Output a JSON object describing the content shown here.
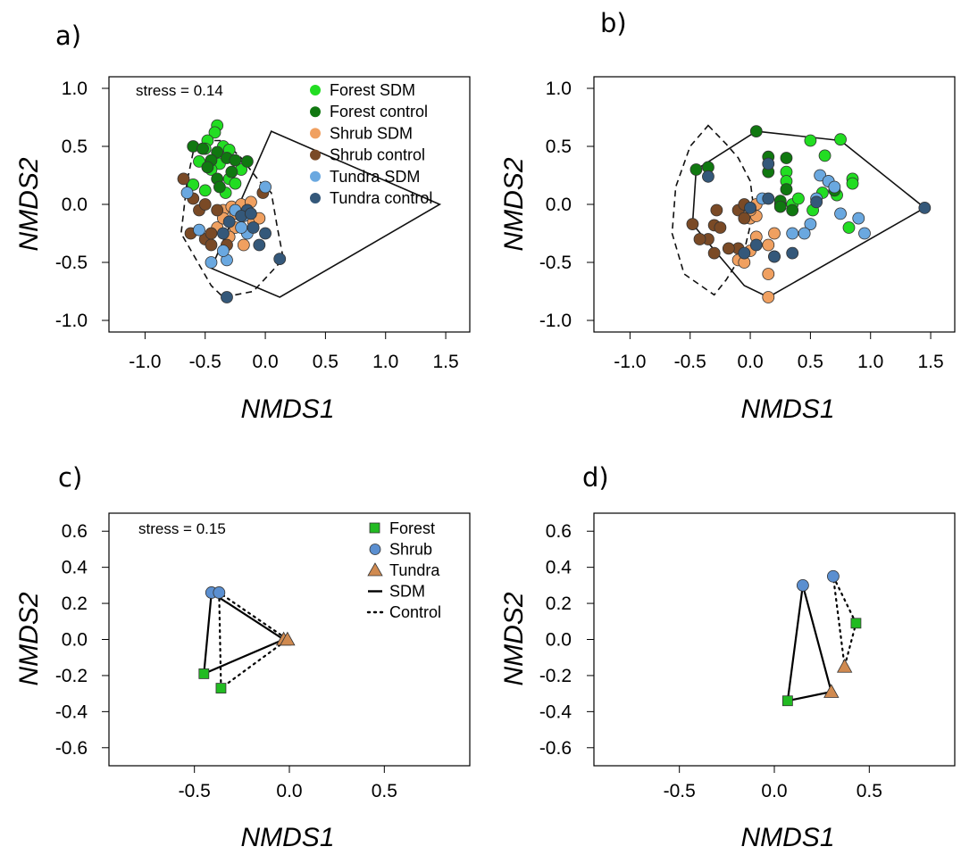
{
  "chart_data": [
    {
      "panel_label": "a)",
      "type": "scatter",
      "xlabel": "NMDS1",
      "ylabel": "NMDS2",
      "xlim": [
        -1.3,
        1.7
      ],
      "ylim": [
        -1.1,
        1.1
      ],
      "xticks": [
        "-1.0",
        "-0.5",
        "0.0",
        "0.5",
        "1.0",
        "1.5"
      ],
      "xtick_values": [
        -1.0,
        -0.5,
        0.0,
        0.5,
        1.0,
        1.5
      ],
      "yticks": [
        "1.0",
        "0.5",
        "0.0",
        "-0.5",
        "-1.0"
      ],
      "ytick_values": [
        1.0,
        0.5,
        0.0,
        -0.5,
        -1.0
      ],
      "annotation": "stress = 0.14",
      "legend": {
        "position": "top-right",
        "entries": [
          {
            "label": "Forest SDM",
            "color": "#22dd22",
            "marker": "circle"
          },
          {
            "label": "Forest control",
            "color": "#107810",
            "marker": "circle"
          },
          {
            "label": "Shrub SDM",
            "color": "#f0a060",
            "marker": "circle"
          },
          {
            "label": "Shrub control",
            "color": "#7a4a26",
            "marker": "circle"
          },
          {
            "label": "Tundra SDM",
            "color": "#6aa8e0",
            "marker": "circle"
          },
          {
            "label": "Tundra control",
            "color": "#34587a",
            "marker": "circle"
          }
        ]
      },
      "hulls": [
        {
          "name": "SDM",
          "style": "solid",
          "points": [
            [
              0.05,
              0.63
            ],
            [
              1.45,
              0.0
            ],
            [
              0.12,
              -0.8
            ],
            [
              -0.45,
              -0.55
            ]
          ]
        },
        {
          "name": "Control",
          "style": "dashed",
          "points": [
            [
              -0.45,
              0.55
            ],
            [
              -0.6,
              0.45
            ],
            [
              -0.65,
              0.2
            ],
            [
              -0.7,
              -0.25
            ],
            [
              -0.45,
              -0.7
            ],
            [
              -0.35,
              -0.8
            ],
            [
              -0.1,
              -0.75
            ],
            [
              0.15,
              -0.47
            ],
            [
              0.1,
              -0.2
            ],
            [
              0.05,
              0.1
            ],
            [
              -0.05,
              0.2
            ],
            [
              -0.2,
              0.4
            ],
            [
              -0.35,
              0.55
            ]
          ]
        }
      ],
      "series": [
        {
          "name": "Forest SDM",
          "color": "#22dd22",
          "points": [
            [
              -0.4,
              0.68
            ],
            [
              -0.42,
              0.62
            ],
            [
              -0.48,
              0.55
            ],
            [
              -0.5,
              0.48
            ],
            [
              -0.35,
              0.5
            ],
            [
              -0.3,
              0.47
            ],
            [
              -0.38,
              0.35
            ],
            [
              -0.45,
              0.3
            ],
            [
              -0.55,
              0.37
            ],
            [
              -0.2,
              0.3
            ],
            [
              -0.3,
              0.22
            ],
            [
              -0.6,
              0.17
            ],
            [
              -0.25,
              0.18
            ],
            [
              -0.33,
              0.1
            ],
            [
              -0.5,
              0.12
            ]
          ]
        },
        {
          "name": "Forest control",
          "color": "#107810",
          "points": [
            [
              -0.6,
              0.5
            ],
            [
              -0.52,
              0.48
            ],
            [
              -0.4,
              0.45
            ],
            [
              -0.32,
              0.4
            ],
            [
              -0.25,
              0.38
            ],
            [
              -0.15,
              0.37
            ],
            [
              -0.45,
              0.38
            ],
            [
              -0.4,
              0.22
            ],
            [
              -0.38,
              0.15
            ],
            [
              -0.48,
              0.32
            ],
            [
              -0.28,
              0.28
            ]
          ]
        },
        {
          "name": "Shrub SDM",
          "color": "#f0a060",
          "points": [
            [
              -0.35,
              -0.05
            ],
            [
              -0.28,
              -0.02
            ],
            [
              -0.2,
              0.0
            ],
            [
              -0.15,
              -0.08
            ],
            [
              -0.1,
              -0.15
            ],
            [
              -0.25,
              -0.2
            ],
            [
              -0.3,
              -0.28
            ],
            [
              -0.4,
              -0.2
            ],
            [
              -0.18,
              -0.35
            ],
            [
              -0.05,
              -0.12
            ],
            [
              -0.25,
              -0.08
            ],
            [
              -0.12,
              0.02
            ],
            [
              -0.35,
              -0.12
            ]
          ]
        },
        {
          "name": "Shrub control",
          "color": "#7a4a26",
          "points": [
            [
              -0.68,
              0.22
            ],
            [
              -0.6,
              0.05
            ],
            [
              -0.55,
              -0.05
            ],
            [
              -0.62,
              -0.25
            ],
            [
              -0.5,
              -0.3
            ],
            [
              -0.45,
              -0.35
            ],
            [
              -0.32,
              -0.35
            ],
            [
              -0.4,
              -0.05
            ],
            [
              -0.45,
              -0.25
            ],
            [
              -0.15,
              -0.05
            ],
            [
              -0.02,
              0.1
            ],
            [
              -0.5,
              0.0
            ]
          ]
        },
        {
          "name": "Tundra SDM",
          "color": "#6aa8e0",
          "points": [
            [
              -0.65,
              0.1
            ],
            [
              -0.55,
              -0.22
            ],
            [
              -0.45,
              -0.5
            ],
            [
              -0.32,
              -0.48
            ],
            [
              -0.25,
              -0.05
            ],
            [
              -0.18,
              -0.1
            ],
            [
              -0.15,
              -0.25
            ],
            [
              -0.35,
              -0.4
            ],
            [
              -0.2,
              -0.2
            ],
            [
              0.0,
              0.15
            ]
          ]
        },
        {
          "name": "Tundra control",
          "color": "#34587a",
          "points": [
            [
              0.12,
              -0.47
            ],
            [
              -0.32,
              -0.8
            ],
            [
              -0.15,
              -0.05
            ],
            [
              -0.1,
              -0.2
            ],
            [
              0.0,
              -0.25
            ],
            [
              -0.05,
              -0.35
            ],
            [
              -0.3,
              -0.15
            ],
            [
              -0.2,
              -0.1
            ],
            [
              -0.12,
              -0.08
            ],
            [
              -0.35,
              -0.25
            ]
          ]
        }
      ]
    },
    {
      "panel_label": "b)",
      "type": "scatter",
      "xlabel": "NMDS1",
      "ylabel": "NMDS2",
      "xlim": [
        -1.3,
        1.7
      ],
      "ylim": [
        -1.1,
        1.1
      ],
      "xticks": [
        "-1.0",
        "-0.5",
        "0.0",
        "0.5",
        "1.0",
        "1.5"
      ],
      "xtick_values": [
        -1.0,
        -0.5,
        0.0,
        0.5,
        1.0,
        1.5
      ],
      "yticks": [
        "1.0",
        "0.5",
        "0.0",
        "-0.5",
        "-1.0"
      ],
      "ytick_values": [
        1.0,
        0.5,
        0.0,
        -0.5,
        -1.0
      ],
      "hulls": [
        {
          "name": "SDM",
          "style": "solid",
          "points": [
            [
              0.05,
              0.63
            ],
            [
              0.75,
              0.55
            ],
            [
              1.45,
              -0.03
            ],
            [
              0.15,
              -0.8
            ],
            [
              -0.05,
              -0.7
            ],
            [
              -0.48,
              -0.17
            ],
            [
              -0.45,
              0.3
            ]
          ]
        },
        {
          "name": "Control",
          "style": "dashed",
          "points": [
            [
              -0.35,
              0.68
            ],
            [
              -0.2,
              0.52
            ],
            [
              -0.1,
              0.4
            ],
            [
              0.0,
              0.2
            ],
            [
              0.03,
              -0.05
            ],
            [
              -0.05,
              -0.4
            ],
            [
              -0.2,
              -0.65
            ],
            [
              -0.3,
              -0.78
            ],
            [
              -0.55,
              -0.6
            ],
            [
              -0.65,
              -0.25
            ],
            [
              -0.62,
              0.15
            ],
            [
              -0.5,
              0.5
            ]
          ]
        }
      ],
      "series": [
        {
          "name": "Forest SDM",
          "color": "#22dd22",
          "points": [
            [
              0.5,
              0.55
            ],
            [
              0.62,
              0.42
            ],
            [
              0.75,
              0.56
            ],
            [
              0.85,
              0.22
            ],
            [
              0.85,
              0.18
            ],
            [
              0.6,
              0.1
            ],
            [
              0.3,
              0.28
            ],
            [
              0.3,
              0.2
            ],
            [
              0.35,
              0.0
            ],
            [
              0.25,
              0.0
            ],
            [
              0.4,
              0.05
            ],
            [
              0.52,
              -0.05
            ],
            [
              0.82,
              -0.2
            ],
            [
              0.72,
              0.08
            ]
          ]
        },
        {
          "name": "Forest control",
          "color": "#107810",
          "points": [
            [
              0.05,
              0.63
            ],
            [
              -0.45,
              0.3
            ],
            [
              -0.35,
              0.32
            ],
            [
              0.15,
              0.41
            ],
            [
              0.3,
              0.4
            ],
            [
              0.15,
              0.28
            ],
            [
              0.3,
              0.13
            ],
            [
              0.7,
              0.12
            ],
            [
              0.65,
              0.2
            ],
            [
              0.35,
              -0.05
            ],
            [
              0.25,
              0.03
            ],
            [
              0.25,
              -0.02
            ]
          ]
        },
        {
          "name": "Shrub SDM",
          "color": "#f0a060",
          "points": [
            [
              0.15,
              -0.8
            ],
            [
              -0.1,
              -0.48
            ],
            [
              -0.05,
              -0.5
            ],
            [
              0.0,
              -0.4
            ],
            [
              0.05,
              -0.28
            ],
            [
              0.0,
              -0.12
            ],
            [
              0.05,
              -0.1
            ],
            [
              0.15,
              -0.35
            ],
            [
              0.2,
              -0.25
            ],
            [
              0.15,
              -0.6
            ],
            [
              0.2,
              -0.45
            ],
            [
              0.05,
              0.0
            ],
            [
              0.0,
              -0.05
            ]
          ]
        },
        {
          "name": "Shrub control",
          "color": "#7a4a26",
          "points": [
            [
              -0.48,
              -0.17
            ],
            [
              -0.3,
              -0.42
            ],
            [
              -0.35,
              -0.3
            ],
            [
              -0.3,
              -0.18
            ],
            [
              -0.25,
              -0.2
            ],
            [
              -0.28,
              -0.05
            ],
            [
              -0.1,
              -0.05
            ],
            [
              -0.05,
              0.0
            ],
            [
              -0.05,
              -0.12
            ],
            [
              -0.1,
              -0.38
            ],
            [
              -0.18,
              -0.38
            ],
            [
              -0.42,
              -0.3
            ]
          ]
        },
        {
          "name": "Tundra SDM",
          "color": "#6aa8e0",
          "points": [
            [
              0.58,
              0.25
            ],
            [
              0.65,
              0.2
            ],
            [
              0.7,
              0.15
            ],
            [
              0.55,
              0.05
            ],
            [
              0.75,
              -0.08
            ],
            [
              0.9,
              -0.12
            ],
            [
              0.95,
              -0.25
            ],
            [
              0.5,
              -0.17
            ],
            [
              0.45,
              -0.25
            ],
            [
              0.35,
              -0.25
            ],
            [
              0.1,
              0.05
            ]
          ]
        },
        {
          "name": "Tundra control",
          "color": "#34587a",
          "points": [
            [
              1.45,
              -0.03
            ],
            [
              -0.35,
              0.24
            ],
            [
              0.15,
              0.35
            ],
            [
              0.15,
              0.05
            ],
            [
              0.05,
              -0.35
            ],
            [
              0.2,
              -0.45
            ],
            [
              0.35,
              -0.42
            ],
            [
              0.55,
              0.02
            ],
            [
              0.0,
              -0.03
            ],
            [
              -0.05,
              -0.42
            ]
          ]
        }
      ]
    },
    {
      "panel_label": "c)",
      "type": "scatter",
      "xlabel": "NMDS1",
      "ylabel": "NMDS2",
      "xlim": [
        -0.95,
        0.95
      ],
      "ylim": [
        -0.7,
        0.7
      ],
      "xticks": [
        "-0.5",
        "0.0",
        "0.5"
      ],
      "xtick_values": [
        -0.5,
        0.0,
        0.5
      ],
      "yticks": [
        "0.6",
        "0.4",
        "0.2",
        "0.0",
        "-0.2",
        "-0.4",
        "-0.6"
      ],
      "ytick_values": [
        0.6,
        0.4,
        0.2,
        0.0,
        -0.2,
        -0.4,
        -0.6
      ],
      "annotation": "stress = 0.15",
      "legend": {
        "position": "top-right",
        "entries": [
          {
            "label": "Forest",
            "marker": "square",
            "color": "#22bb22"
          },
          {
            "label": "Shrub",
            "marker": "circle",
            "color": "#5b8fd0"
          },
          {
            "label": "Tundra",
            "marker": "triangle",
            "color": "#d08a50"
          },
          {
            "label": "SDM",
            "marker": "line-solid",
            "color": "#000000"
          },
          {
            "label": "Control",
            "marker": "line-dotted",
            "color": "#000000"
          }
        ]
      },
      "series": [
        {
          "name": "SDM",
          "style": "solid",
          "forest": [
            -0.45,
            -0.19
          ],
          "shrub": [
            -0.41,
            0.26
          ],
          "tundra": [
            -0.03,
            0.0
          ]
        },
        {
          "name": "Control",
          "style": "dotted",
          "forest": [
            -0.36,
            -0.27
          ],
          "shrub": [
            -0.37,
            0.26
          ],
          "tundra": [
            -0.01,
            0.0
          ]
        }
      ]
    },
    {
      "panel_label": "d)",
      "type": "scatter",
      "xlabel": "NMDS1",
      "ylabel": "NMDS2",
      "xlim": [
        -0.95,
        0.95
      ],
      "ylim": [
        -0.7,
        0.7
      ],
      "xticks": [
        "-0.5",
        "0.0",
        "0.5"
      ],
      "xtick_values": [
        -0.5,
        0.0,
        0.5
      ],
      "yticks": [
        "0.6",
        "0.4",
        "0.2",
        "0.0",
        "-0.2",
        "-0.4",
        "-0.6"
      ],
      "ytick_values": [
        0.6,
        0.4,
        0.2,
        0.0,
        -0.2,
        -0.4,
        -0.6
      ],
      "series": [
        {
          "name": "SDM",
          "style": "solid",
          "forest": [
            0.07,
            -0.34
          ],
          "shrub": [
            0.15,
            0.3
          ],
          "tundra": [
            0.3,
            -0.29
          ]
        },
        {
          "name": "Control",
          "style": "dotted",
          "forest": [
            0.43,
            0.09
          ],
          "shrub": [
            0.31,
            0.35
          ],
          "tundra": [
            0.37,
            -0.15
          ]
        }
      ]
    }
  ]
}
